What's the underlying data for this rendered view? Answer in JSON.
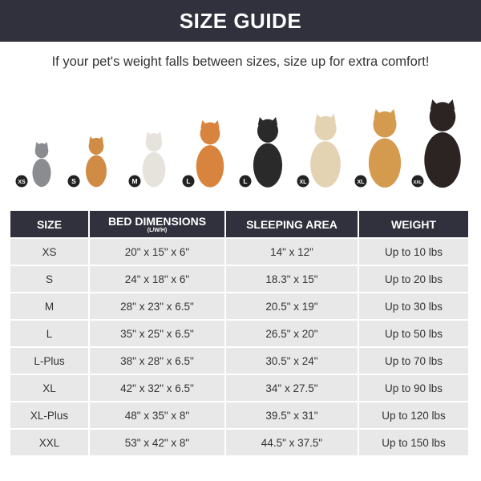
{
  "header": {
    "title": "SIZE GUIDE"
  },
  "subtitle": "If your pet's weight falls between sizes, size up for extra comfort!",
  "pets": [
    {
      "badge": "XS",
      "animal": "cat",
      "color": "#8a8c90"
    },
    {
      "badge": "S",
      "animal": "pomeranian",
      "color": "#d08b45"
    },
    {
      "badge": "M",
      "animal": "french-bulldog",
      "color": "#e6e2dc"
    },
    {
      "badge": "L",
      "animal": "shiba-inu",
      "color": "#d9843e"
    },
    {
      "badge": "L",
      "animal": "border-collie",
      "color": "#2a2a2a"
    },
    {
      "badge": "XL",
      "animal": "labrador",
      "color": "#e3d3b3"
    },
    {
      "badge": "XL",
      "animal": "golden-retriever",
      "color": "#d49a4e"
    },
    {
      "badge": "XXL",
      "animal": "doberman",
      "color": "#2b2422"
    }
  ],
  "table": {
    "headers": [
      {
        "label": "SIZE",
        "sub": ""
      },
      {
        "label": "BED DIMENSIONS",
        "sub": "(L/W/H)"
      },
      {
        "label": "SLEEPING AREA",
        "sub": ""
      },
      {
        "label": "WEIGHT",
        "sub": ""
      }
    ],
    "rows": [
      [
        "XS",
        "20\" x 15\" x 6\"",
        "14\" x 12\"",
        "Up to 10 lbs"
      ],
      [
        "S",
        "24\" x 18\" x 6\"",
        "18.3\" x 15\"",
        "Up to 20 lbs"
      ],
      [
        "M",
        "28\" x 23\" x 6.5\"",
        "20.5\" x 19\"",
        "Up to 30 lbs"
      ],
      [
        "L",
        "35\" x 25\" x 6.5\"",
        "26.5\" x 20\"",
        "Up to 50 lbs"
      ],
      [
        "L-Plus",
        "38\" x 28\" x 6.5\"",
        "30.5\" x 24\"",
        "Up to 70 lbs"
      ],
      [
        "XL",
        "42\" x 32\" x 6.5\"",
        "34\" x 27.5\"",
        "Up to 90 lbs"
      ],
      [
        "XL-Plus",
        "48\" x 35\" x 8\"",
        "39.5\" x 31\"",
        "Up to 120 lbs"
      ],
      [
        "XXL",
        "53\" x 42\" x 8\"",
        "44.5\" x 37.5\"",
        "Up to 150 lbs"
      ]
    ]
  },
  "colors": {
    "header_bg": "#31313d",
    "row_bg": "#e8e8e8"
  }
}
